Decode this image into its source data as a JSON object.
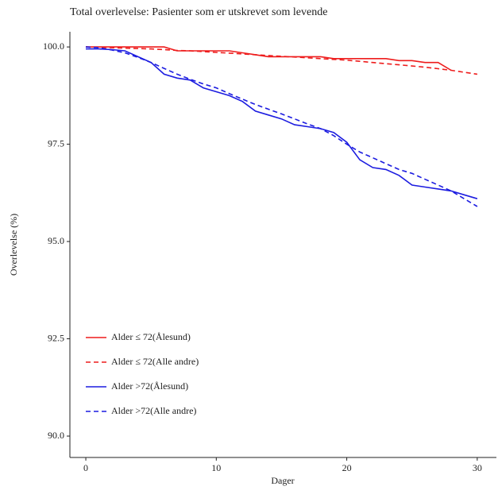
{
  "chart_data": {
    "type": "line",
    "title": "Total overlevelse: Pasienter som er utskrevet som levende",
    "x_label": "Dager",
    "y_label": "Overlevelse (%)",
    "x": [
      0,
      1,
      2,
      3,
      4,
      5,
      6,
      7,
      8,
      9,
      10,
      11,
      12,
      13,
      14,
      15,
      16,
      17,
      18,
      19,
      20,
      21,
      22,
      23,
      24,
      25,
      26,
      27,
      28,
      29,
      30
    ],
    "series": [
      {
        "name": "Alder ≤ 72(Ålesund)",
        "color": "#ee1c1c",
        "dash": "solid",
        "values": [
          100,
          100,
          100,
          100,
          100,
          100,
          100,
          99.9,
          99.9,
          99.9,
          99.9,
          99.9,
          99.85,
          99.8,
          99.75,
          99.75,
          99.75,
          99.75,
          99.75,
          99.7,
          99.7,
          99.7,
          99.7,
          99.7,
          99.65,
          99.65,
          99.6,
          99.6,
          99.4,
          null,
          null
        ]
      },
      {
        "name": "Alder ≤ 72(Alle andre)",
        "color": "#ee1c1c",
        "dash": "dashed",
        "values": [
          100,
          99.99,
          99.98,
          99.97,
          99.96,
          99.95,
          99.93,
          99.91,
          99.9,
          99.88,
          99.86,
          99.84,
          99.82,
          99.8,
          99.78,
          99.76,
          99.74,
          99.72,
          99.7,
          99.68,
          99.66,
          99.63,
          99.6,
          99.57,
          99.54,
          99.51,
          99.48,
          99.44,
          99.4,
          99.35,
          99.3
        ]
      },
      {
        "name": "Alder >72(Ålesund)",
        "color": "#1c1ce0",
        "dash": "solid",
        "values": [
          99.95,
          99.95,
          99.93,
          99.9,
          99.75,
          99.6,
          99.3,
          99.2,
          99.15,
          98.95,
          98.85,
          98.75,
          98.6,
          98.35,
          98.25,
          98.15,
          98.0,
          97.95,
          97.9,
          97.8,
          97.55,
          97.1,
          96.9,
          96.85,
          96.7,
          96.45,
          96.4,
          96.35,
          96.3,
          96.2,
          96.1
        ]
      },
      {
        "name": "Alder >72(Alle andre)",
        "color": "#1c1ce0",
        "dash": "dashed",
        "values": [
          100,
          99.98,
          99.92,
          99.85,
          99.73,
          99.6,
          99.45,
          99.3,
          99.17,
          99.05,
          98.95,
          98.8,
          98.66,
          98.52,
          98.4,
          98.28,
          98.15,
          98.02,
          97.9,
          97.72,
          97.5,
          97.3,
          97.15,
          97.0,
          96.85,
          96.75,
          96.6,
          96.45,
          96.3,
          96.1,
          95.9
        ]
      }
    ],
    "xlim": [
      -1.22,
      31.47
    ],
    "xticks": [
      0,
      10,
      20,
      30
    ],
    "ylim": [
      89.45,
      100.39
    ],
    "yticks": [
      {
        "value": 90,
        "label": "90.0"
      },
      {
        "value": 92.5,
        "label": "92.5"
      },
      {
        "value": 95,
        "label": "95.0"
      },
      {
        "value": 97.5,
        "label": "97.5"
      },
      {
        "value": 100,
        "label": "100.0"
      }
    ],
    "grid": false,
    "legend": "bottom-left"
  }
}
